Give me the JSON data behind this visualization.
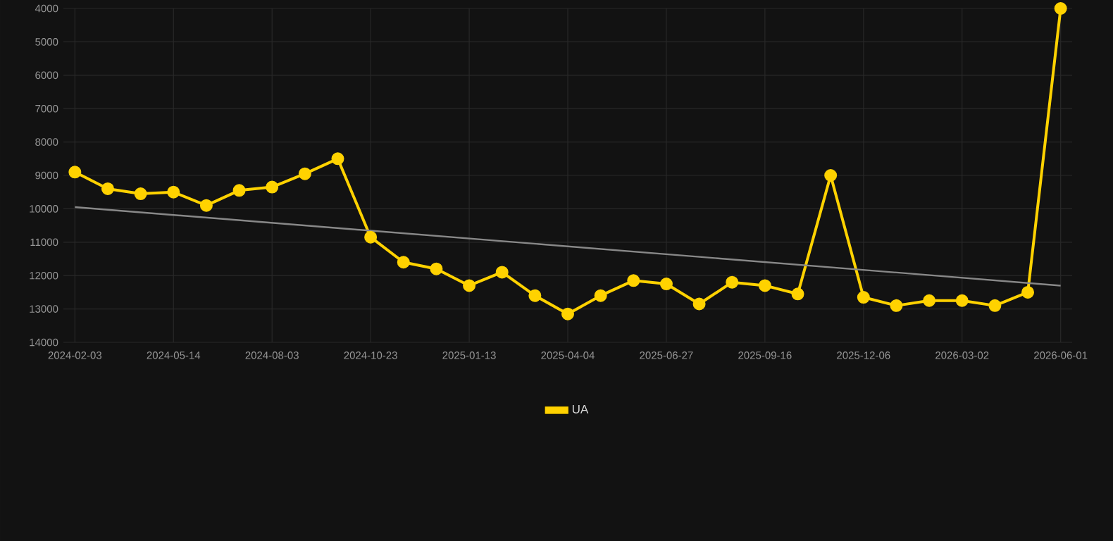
{
  "chart_data": {
    "type": "line",
    "categories": [
      "2024-02-03",
      null,
      null,
      "2024-05-14",
      null,
      null,
      "2024-08-03",
      null,
      null,
      "2024-10-23",
      null,
      null,
      "2025-01-13",
      null,
      null,
      "2025-04-04",
      null,
      null,
      "2025-06-27",
      null,
      null,
      "2025-09-16",
      null,
      null,
      "2025-12-06",
      null,
      null,
      "2026-03-02",
      null,
      null,
      "2026-06-01"
    ],
    "series": [
      {
        "name": "UA",
        "color": "#ffd200",
        "values": [
          8900,
          9400,
          9550,
          9500,
          9900,
          9450,
          9350,
          8950,
          8500,
          10850,
          11600,
          11800,
          12300,
          11900,
          12600,
          13150,
          12600,
          12150,
          12250,
          12850,
          12200,
          12300,
          12550,
          9000,
          12650,
          12900,
          12750,
          12750,
          12900,
          12500,
          4000
        ]
      },
      {
        "type": "line",
        "color": "#888888",
        "marker": "none",
        "values": [
          9950,
          null,
          null,
          null,
          null,
          null,
          null,
          null,
          null,
          null,
          null,
          null,
          null,
          null,
          null,
          null,
          null,
          null,
          null,
          null,
          null,
          null,
          null,
          null,
          null,
          null,
          null,
          null,
          null,
          null,
          12300
        ]
      }
    ],
    "ylim": [
      14000,
      4000
    ],
    "yticks": [
      4000,
      5000,
      6000,
      7000,
      8000,
      9000,
      10000,
      11000,
      12000,
      13000,
      14000
    ],
    "grid": true,
    "legend": "bottom",
    "marker": "circle",
    "line_style": "solid"
  }
}
